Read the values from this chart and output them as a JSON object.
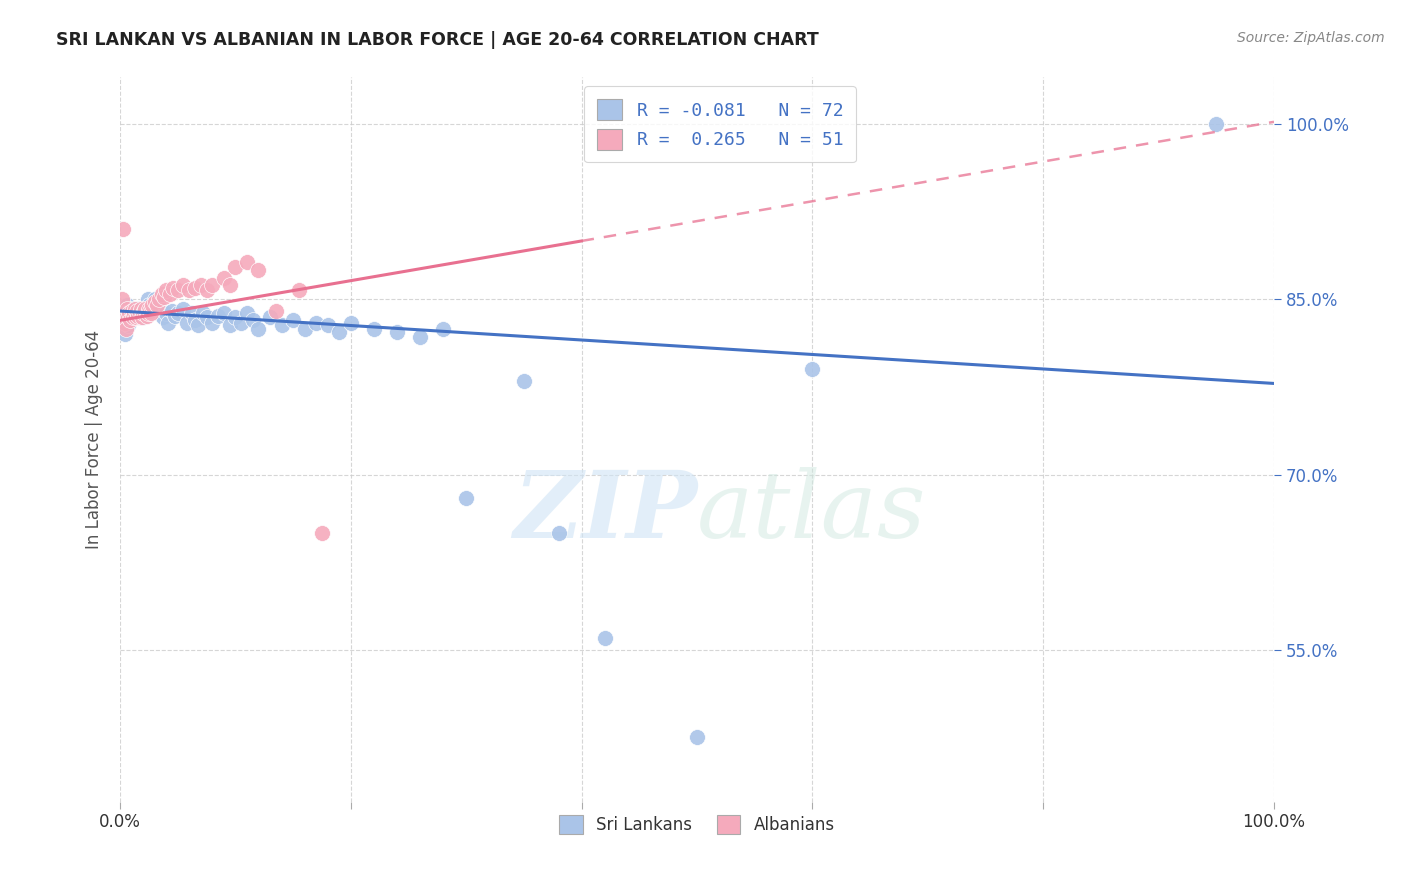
{
  "title": "SRI LANKAN VS ALBANIAN IN LABOR FORCE | AGE 20-64 CORRELATION CHART",
  "source": "Source: ZipAtlas.com",
  "ylabel": "In Labor Force | Age 20-64",
  "xlim": [
    0.0,
    1.0
  ],
  "ylim": [
    0.42,
    1.04
  ],
  "sri_lankan_color": "#aac4e8",
  "albanian_color": "#f5aabc",
  "sri_lankan_line_color": "#4472c4",
  "albanian_line_color": "#e87090",
  "legend_R_sri": "-0.081",
  "legend_N_sri": "72",
  "legend_R_alb": "0.265",
  "legend_N_alb": "51",
  "watermark_zip": "ZIP",
  "watermark_atlas": "atlas",
  "ytick_vals": [
    0.55,
    0.7,
    0.85,
    1.0
  ],
  "ytick_labels": [
    "55.0%",
    "70.0%",
    "85.0%",
    "100.0%"
  ],
  "sri_lankans_x": [
    0.002,
    0.003,
    0.004,
    0.005,
    0.006,
    0.007,
    0.007,
    0.008,
    0.008,
    0.009,
    0.01,
    0.01,
    0.011,
    0.012,
    0.013,
    0.014,
    0.015,
    0.016,
    0.017,
    0.018,
    0.019,
    0.02,
    0.021,
    0.022,
    0.024,
    0.025,
    0.027,
    0.028,
    0.03,
    0.032,
    0.035,
    0.037,
    0.04,
    0.042,
    0.045,
    0.048,
    0.05,
    0.055,
    0.058,
    0.062,
    0.065,
    0.068,
    0.072,
    0.075,
    0.08,
    0.085,
    0.09,
    0.095,
    0.1,
    0.105,
    0.11,
    0.115,
    0.12,
    0.13,
    0.14,
    0.15,
    0.16,
    0.17,
    0.18,
    0.19,
    0.2,
    0.22,
    0.24,
    0.26,
    0.28,
    0.3,
    0.35,
    0.38,
    0.42,
    0.5,
    0.6,
    0.95
  ],
  "sri_lankans_y": [
    0.84,
    0.83,
    0.82,
    0.838,
    0.845,
    0.835,
    0.828,
    0.842,
    0.832,
    0.838,
    0.835,
    0.842,
    0.838,
    0.835,
    0.84,
    0.836,
    0.838,
    0.842,
    0.835,
    0.84,
    0.838,
    0.835,
    0.842,
    0.84,
    0.85,
    0.845,
    0.838,
    0.842,
    0.85,
    0.845,
    0.84,
    0.835,
    0.838,
    0.83,
    0.84,
    0.836,
    0.838,
    0.842,
    0.83,
    0.838,
    0.832,
    0.828,
    0.838,
    0.835,
    0.83,
    0.836,
    0.838,
    0.828,
    0.835,
    0.83,
    0.838,
    0.832,
    0.825,
    0.835,
    0.828,
    0.832,
    0.825,
    0.83,
    0.828,
    0.822,
    0.83,
    0.825,
    0.822,
    0.818,
    0.825,
    0.68,
    0.78,
    0.65,
    0.56,
    0.475,
    0.79,
    1.0
  ],
  "albanians_x": [
    0.002,
    0.003,
    0.004,
    0.005,
    0.005,
    0.006,
    0.007,
    0.008,
    0.009,
    0.01,
    0.011,
    0.012,
    0.013,
    0.014,
    0.015,
    0.016,
    0.017,
    0.018,
    0.019,
    0.02,
    0.021,
    0.022,
    0.023,
    0.024,
    0.025,
    0.026,
    0.027,
    0.028,
    0.03,
    0.032,
    0.034,
    0.036,
    0.038,
    0.04,
    0.043,
    0.046,
    0.05,
    0.055,
    0.06,
    0.065,
    0.07,
    0.075,
    0.08,
    0.09,
    0.095,
    0.1,
    0.11,
    0.12,
    0.135,
    0.155,
    0.175
  ],
  "albanians_y": [
    0.85,
    0.91,
    0.83,
    0.838,
    0.825,
    0.842,
    0.835,
    0.838,
    0.832,
    0.84,
    0.835,
    0.838,
    0.842,
    0.835,
    0.84,
    0.836,
    0.838,
    0.842,
    0.835,
    0.838,
    0.84,
    0.842,
    0.836,
    0.838,
    0.842,
    0.84,
    0.838,
    0.845,
    0.848,
    0.845,
    0.85,
    0.855,
    0.852,
    0.858,
    0.855,
    0.86,
    0.858,
    0.862,
    0.858,
    0.86,
    0.862,
    0.858,
    0.862,
    0.868,
    0.862,
    0.878,
    0.882,
    0.875,
    0.84,
    0.858,
    0.65
  ]
}
